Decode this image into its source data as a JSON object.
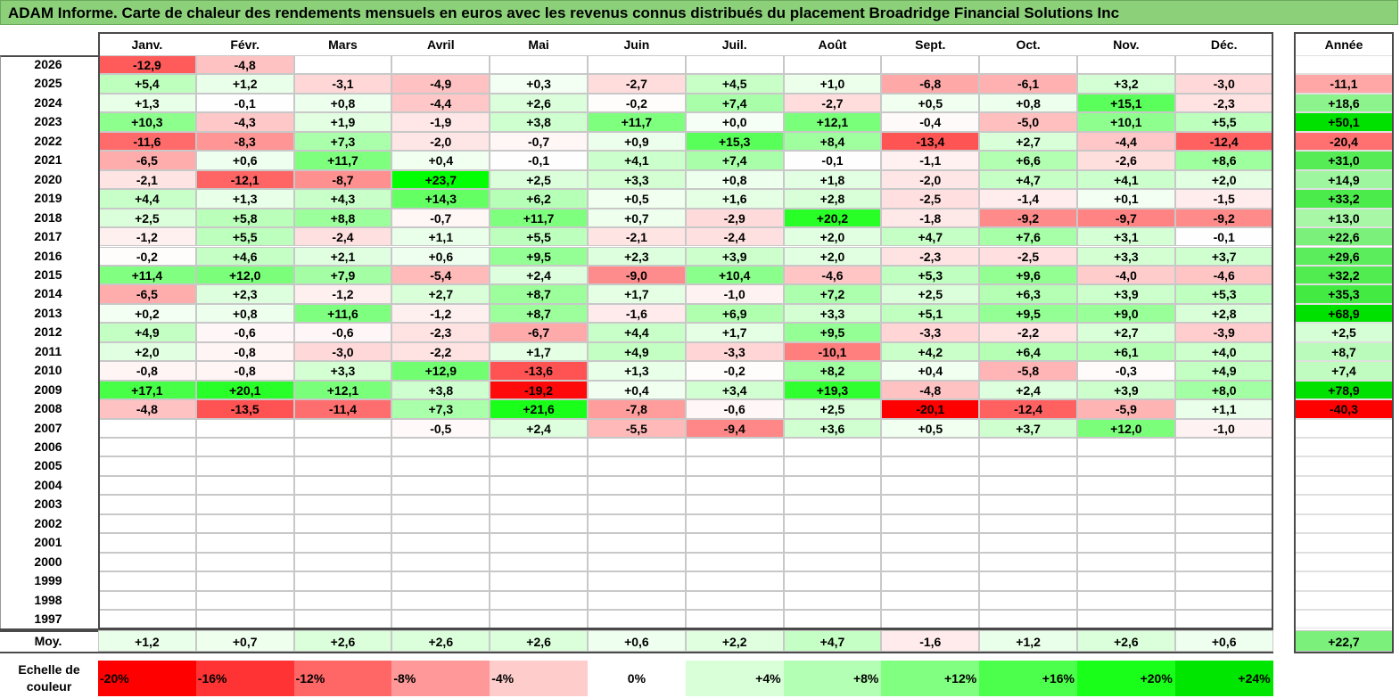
{
  "title": "ADAM Informe. Carte de chaleur des rendements mensuels en euros avec les revenus connus distribués du placement Broadridge Financial Solutions Inc",
  "months": [
    "Janv.",
    "Févr.",
    "Mars",
    "Avril",
    "Mai",
    "Juin",
    "Juil.",
    "Août",
    "Sept.",
    "Oct.",
    "Nov.",
    "Déc."
  ],
  "year_header": "Année",
  "avg_label": "Moy.",
  "scale_label": "Echelle de couleur",
  "chart_data": {
    "type": "heatmap",
    "title": "ADAM Informe. Carte de chaleur des rendements mensuels en euros avec les revenus connus distribués du placement Broadridge Financial Solutions Inc",
    "x_categories": [
      "Janv.",
      "Févr.",
      "Mars",
      "Avril",
      "Mai",
      "Juin",
      "Juil.",
      "Août",
      "Sept.",
      "Oct.",
      "Nov.",
      "Déc."
    ],
    "rows": [
      {
        "year": "2026",
        "months": [
          "-12,9",
          "-4,8",
          "",
          "",
          "",
          "",
          "",
          "",
          "",
          "",
          "",
          ""
        ],
        "annual": ""
      },
      {
        "year": "2025",
        "months": [
          "+5,4",
          "+1,2",
          "-3,1",
          "-4,9",
          "+0,3",
          "-2,7",
          "+4,5",
          "+1,0",
          "-6,8",
          "-6,1",
          "+3,2",
          "-3,0"
        ],
        "annual": "-11,1"
      },
      {
        "year": "2024",
        "months": [
          "+1,3",
          "-0,1",
          "+0,8",
          "-4,4",
          "+2,6",
          "-0,2",
          "+7,4",
          "-2,7",
          "+0,5",
          "+0,8",
          "+15,1",
          "-2,3"
        ],
        "annual": "+18,6"
      },
      {
        "year": "2023",
        "months": [
          "+10,3",
          "-4,3",
          "+1,9",
          "-1,9",
          "+3,8",
          "+11,7",
          "+0,0",
          "+12,1",
          "-0,4",
          "-5,0",
          "+10,1",
          "+5,5"
        ],
        "annual": "+50,1"
      },
      {
        "year": "2022",
        "months": [
          "-11,6",
          "-8,3",
          "+7,3",
          "-2,0",
          "-0,7",
          "+0,9",
          "+15,3",
          "+8,4",
          "-13,4",
          "+2,7",
          "-4,4",
          "-12,4"
        ],
        "annual": "-20,4"
      },
      {
        "year": "2021",
        "months": [
          "-6,5",
          "+0,6",
          "+11,7",
          "+0,4",
          "-0,1",
          "+4,1",
          "+7,4",
          "-0,1",
          "-1,1",
          "+6,6",
          "-2,6",
          "+8,6"
        ],
        "annual": "+31,0"
      },
      {
        "year": "2020",
        "months": [
          "-2,1",
          "-12,1",
          "-8,7",
          "+23,7",
          "+2,5",
          "+3,3",
          "+0,8",
          "+1,8",
          "-2,0",
          "+4,7",
          "+4,1",
          "+2,0"
        ],
        "annual": "+14,9"
      },
      {
        "year": "2019",
        "months": [
          "+4,4",
          "+1,3",
          "+4,3",
          "+14,3",
          "+6,2",
          "+0,5",
          "+1,6",
          "+2,8",
          "-2,5",
          "-1,4",
          "+0,1",
          "-1,5"
        ],
        "annual": "+33,2"
      },
      {
        "year": "2018",
        "months": [
          "+2,5",
          "+5,8",
          "+8,8",
          "-0,7",
          "+11,7",
          "+0,7",
          "-2,9",
          "+20,2",
          "-1,8",
          "-9,2",
          "-9,7",
          "-9,2"
        ],
        "annual": "+13,0"
      },
      {
        "year": "2017",
        "months": [
          "-1,2",
          "+5,5",
          "-2,4",
          "+1,1",
          "+5,5",
          "-2,1",
          "-2,4",
          "+2,0",
          "+4,7",
          "+7,6",
          "+3,1",
          "-0,1"
        ],
        "annual": "+22,6"
      },
      {
        "year": "2016",
        "months": [
          "-0,2",
          "+4,6",
          "+2,1",
          "+0,6",
          "+9,5",
          "+2,3",
          "+3,9",
          "+2,0",
          "-2,3",
          "-2,5",
          "+3,3",
          "+3,7"
        ],
        "annual": "+29,6"
      },
      {
        "year": "2015",
        "months": [
          "+11,4",
          "+12,0",
          "+7,9",
          "-5,4",
          "+2,4",
          "-9,0",
          "+10,4",
          "-4,6",
          "+5,3",
          "+9,6",
          "-4,0",
          "-4,6"
        ],
        "annual": "+32,2"
      },
      {
        "year": "2014",
        "months": [
          "-6,5",
          "+2,3",
          "-1,2",
          "+2,7",
          "+8,7",
          "+1,7",
          "-1,0",
          "+7,2",
          "+2,5",
          "+6,3",
          "+3,9",
          "+5,3"
        ],
        "annual": "+35,3"
      },
      {
        "year": "2013",
        "months": [
          "+0,2",
          "+0,8",
          "+11,6",
          "-1,2",
          "+8,7",
          "-1,6",
          "+6,9",
          "+3,3",
          "+5,1",
          "+9,5",
          "+9,0",
          "+2,8"
        ],
        "annual": "+68,9"
      },
      {
        "year": "2012",
        "months": [
          "+4,9",
          "-0,6",
          "-0,6",
          "-2,3",
          "-6,7",
          "+4,4",
          "+1,7",
          "+9,5",
          "-3,3",
          "-2,2",
          "+2,7",
          "-3,9"
        ],
        "annual": "+2,5"
      },
      {
        "year": "2011",
        "months": [
          "+2,0",
          "-0,8",
          "-3,0",
          "-2,2",
          "+1,7",
          "+4,9",
          "-3,3",
          "-10,1",
          "+4,2",
          "+6,4",
          "+6,1",
          "+4,0"
        ],
        "annual": "+8,7"
      },
      {
        "year": "2010",
        "months": [
          "-0,8",
          "-0,8",
          "+3,3",
          "+12,9",
          "-13,6",
          "+1,3",
          "-0,2",
          "+8,2",
          "+0,4",
          "-5,8",
          "-0,3",
          "+4,9"
        ],
        "annual": "+7,4"
      },
      {
        "year": "2009",
        "months": [
          "+17,1",
          "+20,1",
          "+12,1",
          "+3,8",
          "-19,2",
          "+0,4",
          "+3,4",
          "+19,3",
          "-4,8",
          "+2,4",
          "+3,9",
          "+8,0"
        ],
        "annual": "+78,9"
      },
      {
        "year": "2008",
        "months": [
          "-4,8",
          "-13,5",
          "-11,4",
          "+7,3",
          "+21,6",
          "-7,8",
          "-0,6",
          "+2,5",
          "-20,1",
          "-12,4",
          "-5,9",
          "+1,1"
        ],
        "annual": "-40,3"
      },
      {
        "year": "2007",
        "months": [
          "",
          "",
          "",
          "-0,5",
          "+2,4",
          "-5,5",
          "-9,4",
          "+3,6",
          "+0,5",
          "+3,7",
          "+12,0",
          "-1,0"
        ],
        "annual": ""
      },
      {
        "year": "2006",
        "months": [
          "",
          "",
          "",
          "",
          "",
          "",
          "",
          "",
          "",
          "",
          "",
          ""
        ],
        "annual": ""
      },
      {
        "year": "2005",
        "months": [
          "",
          "",
          "",
          "",
          "",
          "",
          "",
          "",
          "",
          "",
          "",
          ""
        ],
        "annual": ""
      },
      {
        "year": "2004",
        "months": [
          "",
          "",
          "",
          "",
          "",
          "",
          "",
          "",
          "",
          "",
          "",
          ""
        ],
        "annual": ""
      },
      {
        "year": "2003",
        "months": [
          "",
          "",
          "",
          "",
          "",
          "",
          "",
          "",
          "",
          "",
          "",
          ""
        ],
        "annual": ""
      },
      {
        "year": "2002",
        "months": [
          "",
          "",
          "",
          "",
          "",
          "",
          "",
          "",
          "",
          "",
          "",
          ""
        ],
        "annual": ""
      },
      {
        "year": "2001",
        "months": [
          "",
          "",
          "",
          "",
          "",
          "",
          "",
          "",
          "",
          "",
          "",
          ""
        ],
        "annual": ""
      },
      {
        "year": "2000",
        "months": [
          "",
          "",
          "",
          "",
          "",
          "",
          "",
          "",
          "",
          "",
          "",
          ""
        ],
        "annual": ""
      },
      {
        "year": "1999",
        "months": [
          "",
          "",
          "",
          "",
          "",
          "",
          "",
          "",
          "",
          "",
          "",
          ""
        ],
        "annual": ""
      },
      {
        "year": "1998",
        "months": [
          "",
          "",
          "",
          "",
          "",
          "",
          "",
          "",
          "",
          "",
          "",
          ""
        ],
        "annual": ""
      },
      {
        "year": "1997",
        "months": [
          "",
          "",
          "",
          "",
          "",
          "",
          "",
          "",
          "",
          "",
          "",
          ""
        ],
        "annual": ""
      }
    ],
    "averages": [
      "+1,2",
      "+0,7",
      "+2,6",
      "+2,6",
      "+2,6",
      "+0,6",
      "+2,2",
      "+4,7",
      "-1,6",
      "+1,2",
      "+2,6",
      "+0,6"
    ],
    "average_annual": "+22,7",
    "color_scale": [
      {
        "label": "-20%",
        "value": -20,
        "color": "#ff0000"
      },
      {
        "label": "-16%",
        "value": -16,
        "color": "#ff3333"
      },
      {
        "label": "-12%",
        "value": -12,
        "color": "#ff6666"
      },
      {
        "label": "-8%",
        "value": -8,
        "color": "#ff9999"
      },
      {
        "label": "-4%",
        "value": -4,
        "color": "#ffcccc"
      },
      {
        "label": "0%",
        "value": 0,
        "color": "#ffffff"
      },
      {
        "label": "+4%",
        "value": 4,
        "color": "#d9ffd9"
      },
      {
        "label": "+8%",
        "value": 8,
        "color": "#b3ffb3"
      },
      {
        "label": "+12%",
        "value": 12,
        "color": "#80ff80"
      },
      {
        "label": "+16%",
        "value": 16,
        "color": "#4dff4d"
      },
      {
        "label": "+20%",
        "value": 20,
        "color": "#1aff1a"
      },
      {
        "label": "+24%",
        "value": 24,
        "color": "#00e600"
      }
    ]
  }
}
